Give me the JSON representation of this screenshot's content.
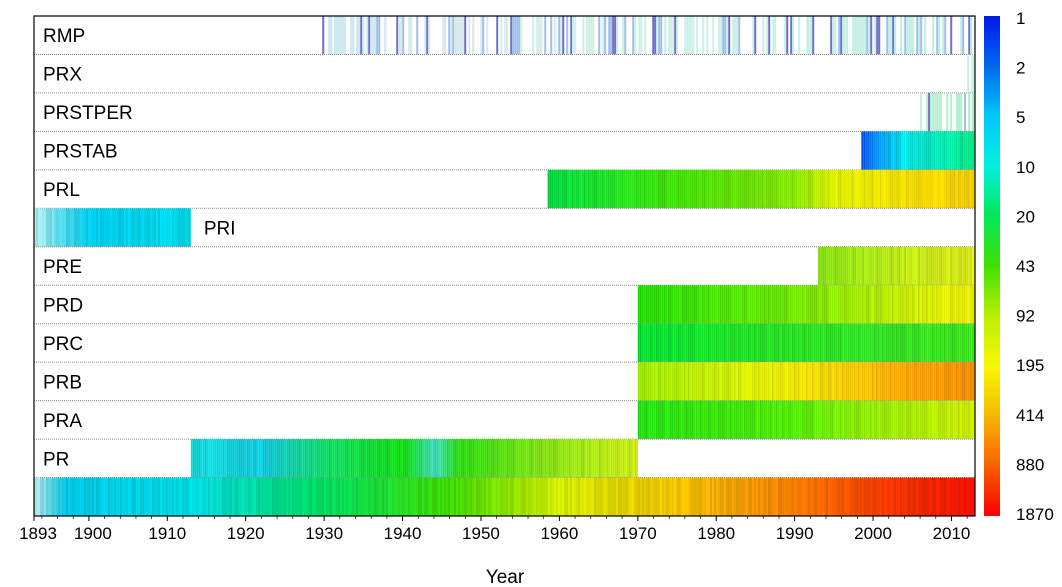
{
  "chart_data": {
    "type": "heatmap",
    "title": "",
    "xlabel": "Year",
    "ylabel": "",
    "xlim": [
      1893,
      2013
    ],
    "x_ticks": [
      "1893",
      "1900",
      "1910",
      "1920",
      "1930",
      "1940",
      "1950",
      "1960",
      "1970",
      "1980",
      "1990",
      "2000",
      "2010"
    ],
    "colorbar": {
      "labels": [
        "1",
        "2",
        "5",
        "10",
        "20",
        "43",
        "92",
        "195",
        "414",
        "880",
        "1870"
      ],
      "colors": [
        "#0018e8",
        "#0068f0",
        "#00c8f8",
        "#00f0e0",
        "#00e858",
        "#40e000",
        "#b8f000",
        "#f8f800",
        "#f8b800",
        "#f86000",
        "#f80000"
      ]
    },
    "rows": [
      {
        "label": "RMP",
        "start": 1929.5,
        "end": 2013,
        "color_stops": [
          [
            1929.5,
            "#c8e8f0"
          ],
          [
            1945,
            "#d8e8f0"
          ],
          [
            1960,
            "#d0f0e8"
          ],
          [
            1990,
            "#c8f0e8"
          ],
          [
            2013,
            "#b8f0e0"
          ]
        ],
        "sparse": true
      },
      {
        "label": "PRX",
        "start": 2012,
        "end": 2013,
        "color_stops": [
          [
            2012,
            "#c8f0e0"
          ],
          [
            2013,
            "#c8f0e0"
          ]
        ],
        "sparse": true
      },
      {
        "label": "PRSTPER",
        "start": 2006,
        "end": 2013,
        "color_stops": [
          [
            2006,
            "#c0f0d8"
          ],
          [
            2013,
            "#a8f0c8"
          ]
        ],
        "sparse": true
      },
      {
        "label": "PRSTAB",
        "start": 1998.5,
        "end": 2013,
        "color_stops": [
          [
            1998.5,
            "#0050e8"
          ],
          [
            2001,
            "#00a0f0"
          ],
          [
            2004,
            "#00e8e8"
          ],
          [
            2008,
            "#00e8b8"
          ],
          [
            2013,
            "#00e880"
          ]
        ]
      },
      {
        "label": "PRL",
        "start": 1958.5,
        "end": 2013,
        "color_stops": [
          [
            1958.5,
            "#00e040"
          ],
          [
            1975,
            "#40e000"
          ],
          [
            1990,
            "#88e800"
          ],
          [
            1995,
            "#e0f000"
          ],
          [
            2005,
            "#f8e000"
          ],
          [
            2013,
            "#f8d000"
          ]
        ]
      },
      {
        "label": "PRI",
        "start": 1893,
        "end": 1913,
        "color_stops": [
          [
            1893,
            "#b8f0f0"
          ],
          [
            1896,
            "#60e0f0"
          ],
          [
            1900,
            "#00d0f0"
          ],
          [
            1913,
            "#00e0f0"
          ]
        ],
        "label_after": true
      },
      {
        "label": "PRE",
        "start": 1993,
        "end": 2013,
        "color_stops": [
          [
            1993,
            "#80e800"
          ],
          [
            2005,
            "#c8f000"
          ],
          [
            2013,
            "#e0f000"
          ]
        ]
      },
      {
        "label": "PRD",
        "start": 1970,
        "end": 2013,
        "color_stops": [
          [
            1970,
            "#20e000"
          ],
          [
            1990,
            "#70e800"
          ],
          [
            2005,
            "#d0f000"
          ],
          [
            2013,
            "#f0f000"
          ]
        ]
      },
      {
        "label": "PRC",
        "start": 1970,
        "end": 2013,
        "color_stops": [
          [
            1970,
            "#00e030"
          ],
          [
            1985,
            "#20e020"
          ],
          [
            2000,
            "#30e020"
          ],
          [
            2013,
            "#38e018"
          ]
        ]
      },
      {
        "label": "PRB",
        "start": 1970,
        "end": 2013,
        "color_stops": [
          [
            1970,
            "#a0f000"
          ],
          [
            1985,
            "#e0f000"
          ],
          [
            1995,
            "#f8d800"
          ],
          [
            2005,
            "#f8a000"
          ],
          [
            2013,
            "#f89000"
          ]
        ]
      },
      {
        "label": "PRA",
        "start": 1970,
        "end": 2013,
        "color_stops": [
          [
            1970,
            "#20e010"
          ],
          [
            1990,
            "#50e800"
          ],
          [
            2000,
            "#98f000"
          ],
          [
            2013,
            "#d0f000"
          ]
        ]
      },
      {
        "label": "PR",
        "start": 1913,
        "end": 1970,
        "color_stops": [
          [
            1913,
            "#00e0e0"
          ],
          [
            1922,
            "#00d0e8"
          ],
          [
            1930,
            "#00e060"
          ],
          [
            1940,
            "#00e800"
          ],
          [
            1944,
            "#30e0c0"
          ],
          [
            1947,
            "#20e000"
          ],
          [
            1958,
            "#80e800"
          ],
          [
            1970,
            "#d0f000"
          ]
        ]
      },
      {
        "label": "",
        "start": 1893,
        "end": 2013,
        "color_stops": [
          [
            1893,
            "#b8f0f0"
          ],
          [
            1897,
            "#00c8e8"
          ],
          [
            1913,
            "#00e0e8"
          ],
          [
            1930,
            "#00e060"
          ],
          [
            1946,
            "#40e000"
          ],
          [
            1960,
            "#d8f000"
          ],
          [
            1975,
            "#f8c800"
          ],
          [
            1990,
            "#f88000"
          ],
          [
            2000,
            "#f84000"
          ],
          [
            2013,
            "#f81000"
          ]
        ]
      }
    ]
  }
}
